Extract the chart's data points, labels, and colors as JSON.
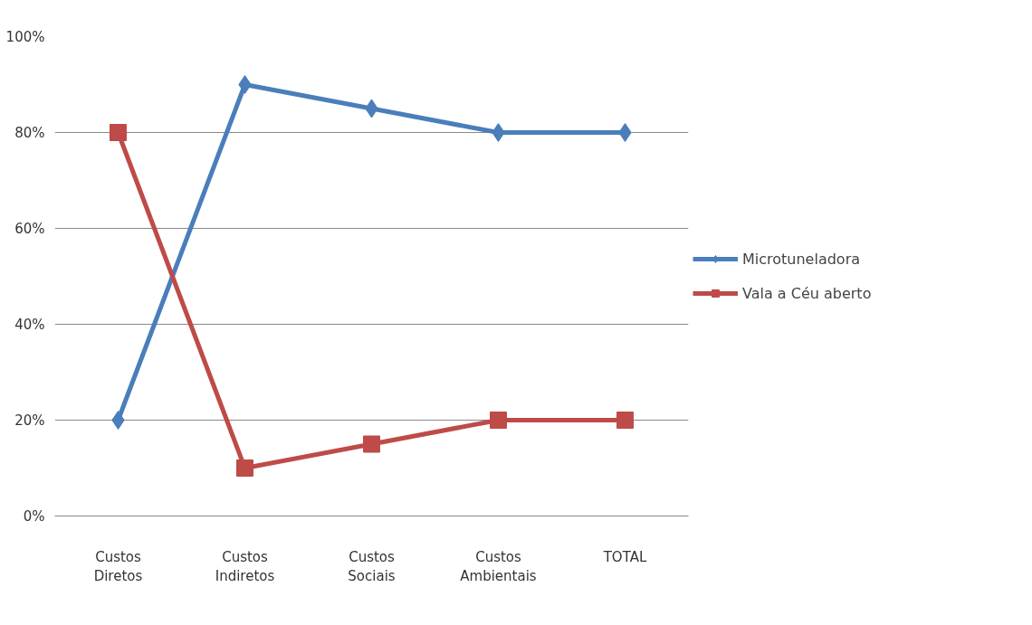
{
  "chart_data": {
    "type": "line",
    "categories": [
      "Custos\nDiretos",
      "Custos\nIndiretos",
      "Custos\nSociais",
      "Custos\nAmbientais",
      "TOTAL"
    ],
    "series": [
      {
        "name": "Microtuneladora",
        "color": "#4a7ebb",
        "marker": "diamond",
        "values": [
          20,
          90,
          85,
          80,
          80
        ]
      },
      {
        "name": "Vala a Céu aberto",
        "color": "#be4b48",
        "marker": "square",
        "values": [
          80,
          10,
          15,
          20,
          20
        ]
      }
    ],
    "ylim": [
      0,
      100
    ],
    "yticks": [
      {
        "value": 0,
        "label": "0%"
      },
      {
        "value": 20,
        "label": "20%"
      },
      {
        "value": 40,
        "label": "40%"
      },
      {
        "value": 60,
        "label": "60%"
      },
      {
        "value": 80,
        "label": "80%"
      },
      {
        "value": 100,
        "label": "100%"
      }
    ],
    "grid": "y",
    "legend": "right",
    "line_style": "solid"
  }
}
